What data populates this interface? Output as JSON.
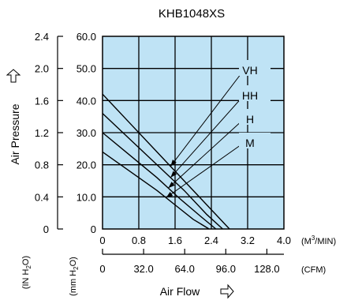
{
  "chart_data": {
    "type": "line",
    "title": "KHB1048XS",
    "ylabel": "Air Pressure",
    "xlabel": "Air Flow",
    "y_units": [
      "(IN H2O)",
      "(mm H2O)"
    ],
    "x_units": [
      "(M3/MIN)",
      "(CFM)"
    ],
    "y_ticks_in_h2o": [
      "2.4",
      "2.0",
      "1.6",
      "1.2",
      "0.8",
      "0.4",
      "0"
    ],
    "y_ticks_mm_h2o": [
      "60.0",
      "50.0",
      "40.0",
      "30.0",
      "20.0",
      "10.0",
      "0"
    ],
    "x_ticks_m3min": [
      "0",
      "0.8",
      "1.6",
      "2.4",
      "3.2",
      "4.0"
    ],
    "x_ticks_cfm": [
      "0",
      "32.0",
      "64.0",
      "96.0",
      "128.0"
    ],
    "xlim": [
      0,
      4.0
    ],
    "ylim": [
      0,
      60
    ],
    "grid": true,
    "plot_background": "#bfe3f5",
    "line_color": "#000000",
    "series": [
      {
        "name": "VH",
        "x": [
          0,
          0.6,
          1.2,
          1.8,
          2.4,
          2.8
        ],
        "y": [
          42,
          33,
          24,
          15,
          6,
          0
        ]
      },
      {
        "name": "HH",
        "x": [
          0,
          0.6,
          1.2,
          1.8,
          2.3,
          2.65
        ],
        "y": [
          36,
          28,
          20,
          12,
          4.5,
          0
        ]
      },
      {
        "name": "H",
        "x": [
          0,
          0.6,
          1.2,
          1.7,
          2.2,
          2.5
        ],
        "y": [
          30,
          23,
          16,
          9.5,
          3.5,
          0
        ]
      },
      {
        "name": "M",
        "x": [
          0,
          0.6,
          1.2,
          1.6,
          2.0,
          2.35
        ],
        "y": [
          24,
          18,
          12,
          7.5,
          3,
          0
        ]
      }
    ]
  }
}
